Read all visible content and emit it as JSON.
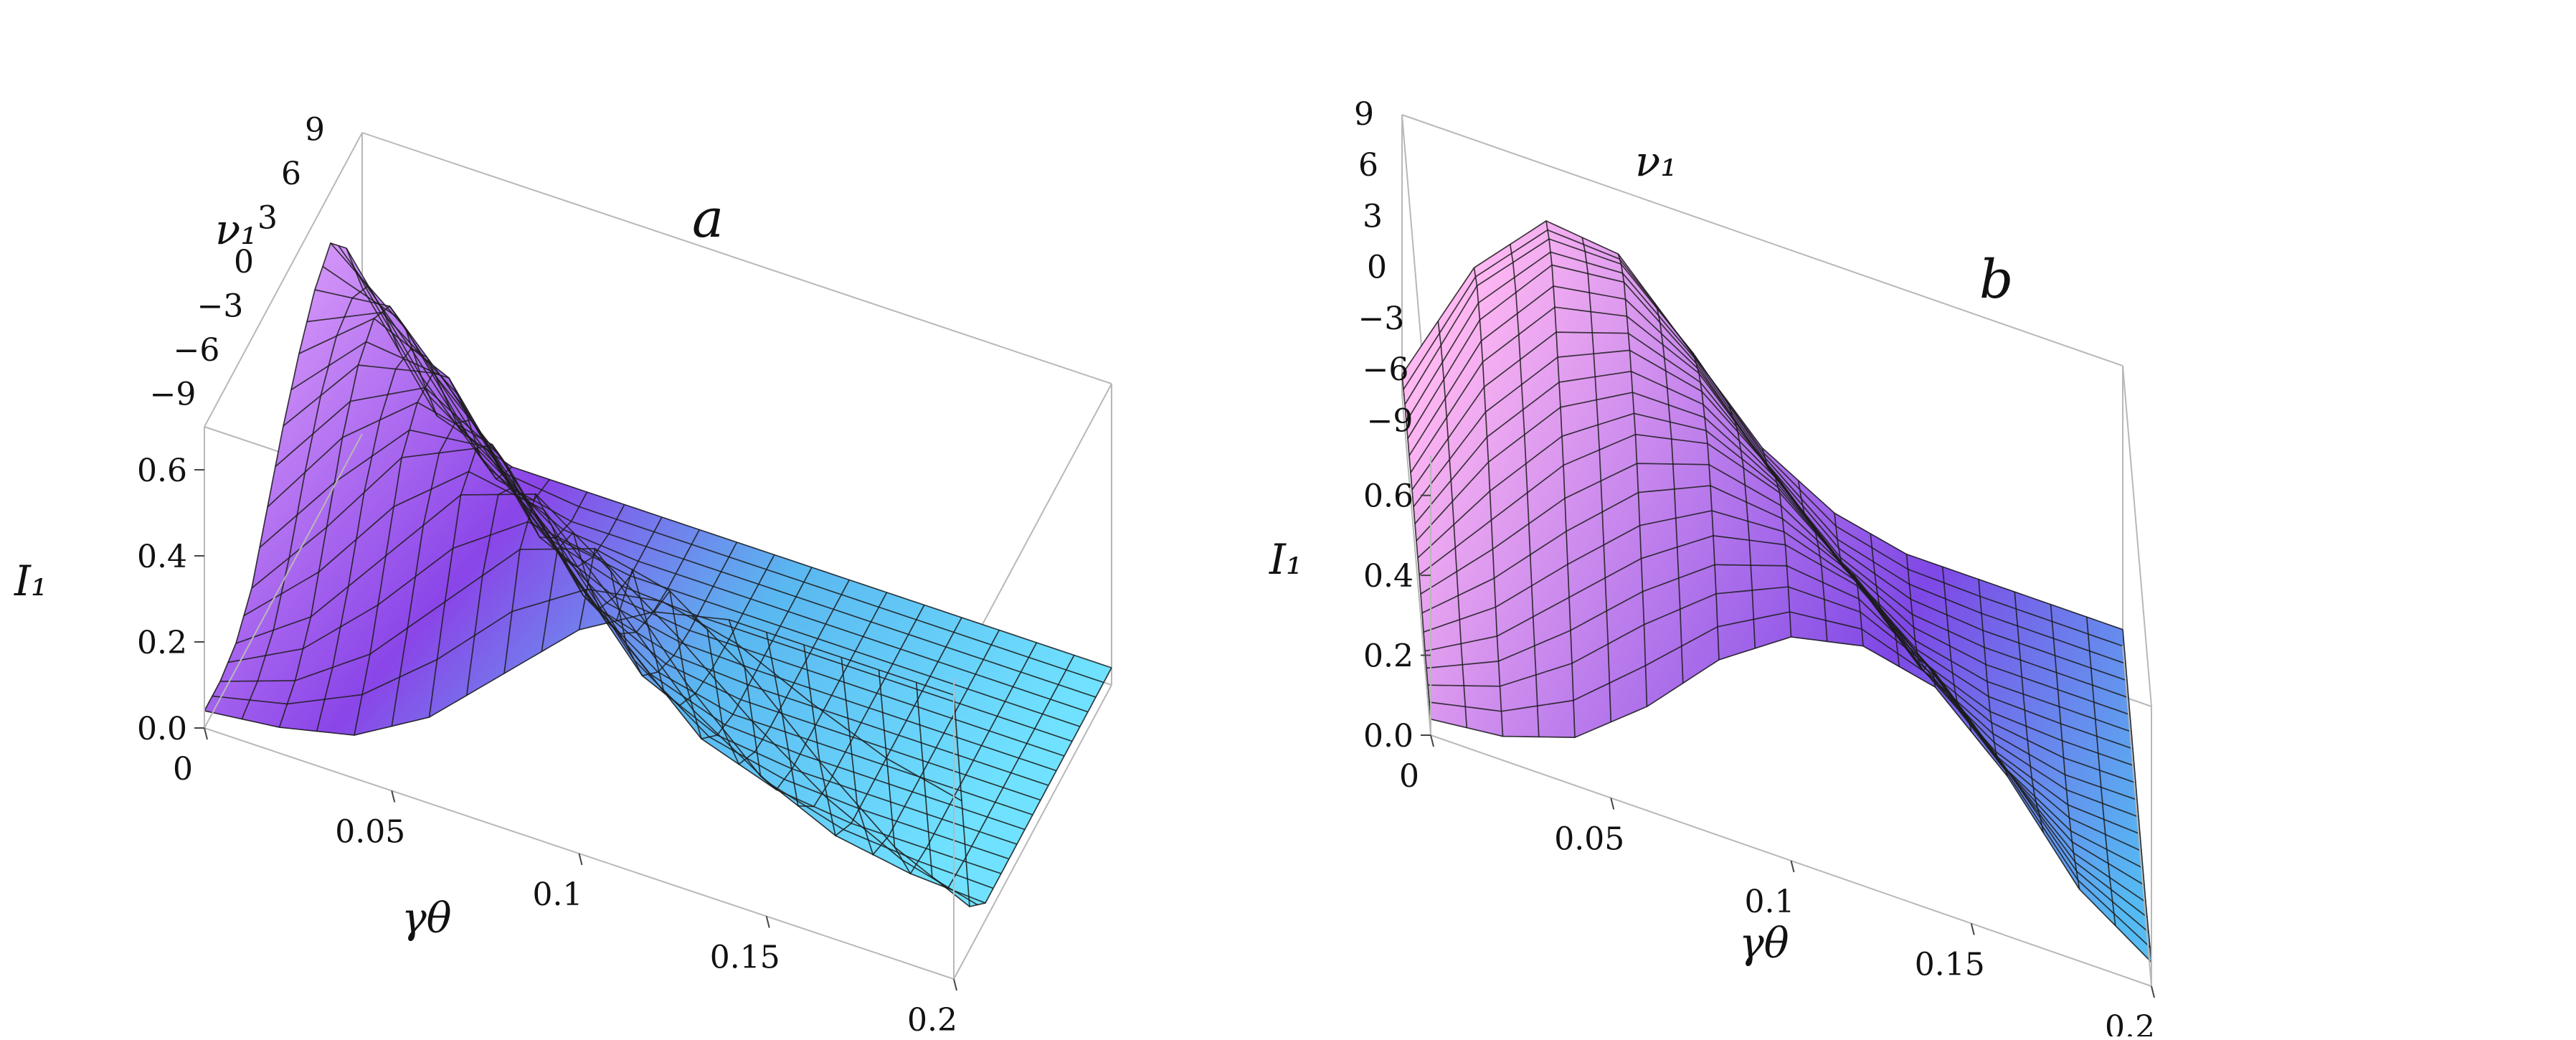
{
  "chart_data": [
    {
      "type": "surface3d",
      "panel_label": "a",
      "x_label": "γθ",
      "y_label": "ν₁",
      "z_label": "I₁",
      "x_ticks": [
        "0",
        "0.05",
        "0.1",
        "0.15",
        "0.2"
      ],
      "y_ticks": [
        "−9",
        "−6",
        "−3",
        "0",
        "3",
        "6",
        "9"
      ],
      "z_ticks": [
        "0.0",
        "0.2",
        "0.4",
        "0.6"
      ],
      "xlim": [
        0,
        0.2
      ],
      "ylim": [
        -10,
        10
      ],
      "zlim": [
        0,
        0.7
      ],
      "x": [
        0,
        0.02,
        0.04,
        0.06,
        0.08,
        0.1,
        0.12,
        0.14,
        0.16,
        0.18,
        0.2
      ],
      "y": [
        -10,
        -8,
        -6,
        -4,
        -2,
        0,
        2,
        4,
        6,
        8,
        10
      ],
      "z": [
        [
          0.04,
          0.06,
          0.1,
          0.2,
          0.36,
          0.52,
          0.62,
          0.66,
          0.66,
          0.66,
          0.66
        ],
        [
          0.04,
          0.1,
          0.22,
          0.4,
          0.58,
          0.64,
          0.6,
          0.48,
          0.32,
          0.18,
          0.1
        ],
        [
          0.06,
          0.18,
          0.38,
          0.58,
          0.64,
          0.52,
          0.32,
          0.16,
          0.08,
          0.05,
          0.04
        ],
        [
          0.12,
          0.32,
          0.54,
          0.62,
          0.5,
          0.28,
          0.12,
          0.06,
          0.04,
          0.04,
          0.04
        ],
        [
          0.24,
          0.46,
          0.6,
          0.56,
          0.34,
          0.14,
          0.06,
          0.04,
          0.04,
          0.04,
          0.04
        ],
        [
          0.36,
          0.56,
          0.6,
          0.44,
          0.2,
          0.08,
          0.04,
          0.04,
          0.04,
          0.04,
          0.04
        ],
        [
          0.46,
          0.6,
          0.52,
          0.28,
          0.1,
          0.05,
          0.04,
          0.04,
          0.04,
          0.04,
          0.04
        ],
        [
          0.54,
          0.56,
          0.38,
          0.14,
          0.06,
          0.04,
          0.04,
          0.04,
          0.04,
          0.04,
          0.04
        ],
        [
          0.58,
          0.44,
          0.2,
          0.07,
          0.04,
          0.04,
          0.04,
          0.04,
          0.04,
          0.04,
          0.04
        ],
        [
          0.5,
          0.26,
          0.08,
          0.04,
          0.04,
          0.04,
          0.04,
          0.04,
          0.04,
          0.04,
          0.04
        ],
        [
          0.34,
          0.1,
          0.04,
          0.04,
          0.04,
          0.04,
          0.04,
          0.04,
          0.04,
          0.04,
          0.04
        ]
      ]
    },
    {
      "type": "surface3d",
      "panel_label": "b",
      "x_label": "γθ",
      "y_label": "ν₁",
      "z_label": "I₁",
      "x_ticks": [
        "0",
        "0.05",
        "0.1",
        "0.15",
        "0.2"
      ],
      "y_ticks": [
        "−9",
        "−6",
        "−3",
        "0",
        "3",
        "6",
        "9"
      ],
      "z_ticks": [
        "0.0",
        "0.2",
        "0.4",
        "0.6"
      ],
      "xlim": [
        0,
        0.2
      ],
      "ylim": [
        -10,
        10
      ],
      "zlim": [
        0,
        0.7
      ],
      "x": [
        0,
        0.02,
        0.04,
        0.06,
        0.08,
        0.1,
        0.12,
        0.14,
        0.16,
        0.18,
        0.2
      ],
      "y": [
        -10,
        -8,
        -6,
        -4,
        -2,
        0,
        2,
        4,
        6,
        8,
        10
      ],
      "z": [
        [
          0.04,
          0.06,
          0.12,
          0.26,
          0.44,
          0.56,
          0.6,
          0.56,
          0.4,
          0.18,
          0.06
        ],
        [
          0.04,
          0.1,
          0.22,
          0.38,
          0.52,
          0.6,
          0.6,
          0.52,
          0.34,
          0.14,
          0.05
        ],
        [
          0.04,
          0.14,
          0.3,
          0.46,
          0.58,
          0.62,
          0.58,
          0.44,
          0.26,
          0.1,
          0.04
        ],
        [
          0.05,
          0.2,
          0.38,
          0.54,
          0.62,
          0.6,
          0.52,
          0.36,
          0.18,
          0.07,
          0.04
        ],
        [
          0.06,
          0.26,
          0.46,
          0.6,
          0.64,
          0.58,
          0.44,
          0.26,
          0.12,
          0.05,
          0.04
        ],
        [
          0.06,
          0.32,
          0.52,
          0.62,
          0.62,
          0.52,
          0.36,
          0.18,
          0.08,
          0.04,
          0.04
        ],
        [
          0.06,
          0.36,
          0.56,
          0.64,
          0.6,
          0.46,
          0.28,
          0.12,
          0.05,
          0.04,
          0.04
        ],
        [
          0.06,
          0.4,
          0.6,
          0.64,
          0.56,
          0.38,
          0.2,
          0.08,
          0.04,
          0.04,
          0.04
        ],
        [
          0.06,
          0.42,
          0.62,
          0.64,
          0.5,
          0.3,
          0.14,
          0.06,
          0.04,
          0.04,
          0.04
        ],
        [
          0.06,
          0.42,
          0.6,
          0.6,
          0.44,
          0.24,
          0.1,
          0.05,
          0.04,
          0.04,
          0.04
        ],
        [
          0.05,
          0.38,
          0.56,
          0.54,
          0.36,
          0.18,
          0.08,
          0.04,
          0.04,
          0.04,
          0.04
        ]
      ]
    }
  ]
}
